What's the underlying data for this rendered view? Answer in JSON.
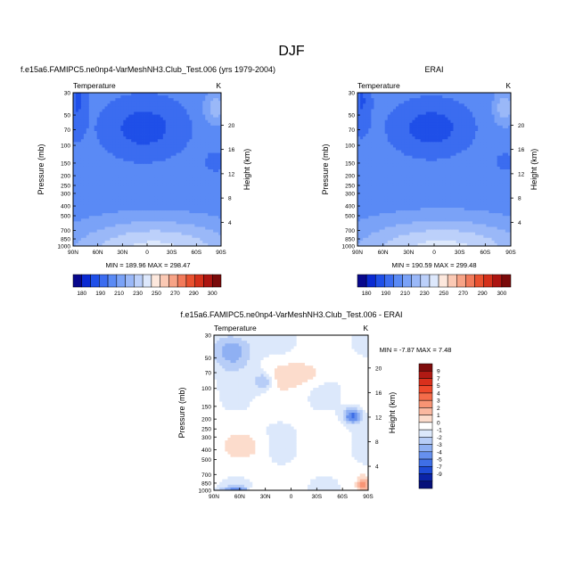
{
  "page_title": "DJF",
  "chart_data": [
    {
      "type": "heatmap",
      "title": "f.e15a6.FAMIPC5.ne0np4-VarMeshNH3.Club_Test.006 (yrs 1979-2004)",
      "left_label": "Temperature",
      "right_label": "K",
      "xlabel": "",
      "ylabel": "Pressure (mb)",
      "ylabel_right": "Height (km)",
      "x_ticks": [
        "90N",
        "60N",
        "30N",
        "0",
        "30S",
        "60S",
        "90S"
      ],
      "y_ticks": [
        "30",
        "50",
        "70",
        "100",
        "150",
        "200",
        "250",
        "300",
        "400",
        "500",
        "700",
        "850",
        "1000"
      ],
      "height_ticks": [
        "4",
        "8",
        "12",
        "16",
        "20"
      ],
      "min_max_text": "MIN = 189.96   MAX = 298.47",
      "min": 189.96,
      "max": 298.47,
      "colorbar_ticks": [
        "180",
        "190",
        "200",
        "210",
        "220",
        "230",
        "240",
        "250",
        "260",
        "270",
        "280",
        "290",
        "300"
      ],
      "colorbar_labels": [
        "180",
        "190",
        "210",
        "230",
        "250",
        "270",
        "290",
        "300"
      ],
      "colors": [
        "#08088c",
        "#0a2ad2",
        "#1f4fe8",
        "#3b6cf0",
        "#5a8af5",
        "#7aa2f7",
        "#9ab8f8",
        "#bcd0fa",
        "#dde8fc",
        "#fde8dd",
        "#fbc9b4",
        "#f7a386",
        "#f27a5a",
        "#e9512f",
        "#d4301a",
        "#ac1410",
        "#7a0a0a"
      ]
    },
    {
      "type": "heatmap",
      "title": "ERAI",
      "left_label": "Temperature",
      "right_label": "K",
      "xlabel": "",
      "ylabel": "Pressure (mb)",
      "ylabel_right": "Height (km)",
      "x_ticks": [
        "90N",
        "60N",
        "30N",
        "0",
        "30S",
        "60S",
        "90S"
      ],
      "y_ticks": [
        "30",
        "50",
        "70",
        "100",
        "150",
        "200",
        "250",
        "300",
        "400",
        "500",
        "700",
        "850",
        "1000"
      ],
      "height_ticks": [
        "4",
        "8",
        "12",
        "16",
        "20"
      ],
      "min_max_text": "MIN = 190.59   MAX = 299.48",
      "min": 190.59,
      "max": 299.48,
      "colorbar_ticks": [
        "180",
        "190",
        "200",
        "210",
        "220",
        "230",
        "240",
        "250",
        "260",
        "270",
        "280",
        "290",
        "300"
      ],
      "colorbar_labels": [
        "180",
        "190",
        "210",
        "230",
        "250",
        "270",
        "290",
        "300"
      ]
    },
    {
      "type": "heatmap",
      "title": "f.e15a6.FAMIPC5.ne0np4-VarMeshNH3.Club_Test.006 - ERAI",
      "left_label": "Temperature",
      "right_label": "K",
      "xlabel": "",
      "ylabel": "Pressure (mb)",
      "ylabel_right": "Height (km)",
      "x_ticks": [
        "90N",
        "60N",
        "30N",
        "0",
        "30S",
        "60S",
        "90S"
      ],
      "y_ticks": [
        "30",
        "50",
        "70",
        "100",
        "150",
        "200",
        "250",
        "300",
        "400",
        "500",
        "700",
        "850",
        "1000"
      ],
      "height_ticks": [
        "4",
        "8",
        "12",
        "16",
        "20"
      ],
      "min_max_text": "MIN = -7.87   MAX =   7.48",
      "min": -7.87,
      "max": 7.48,
      "colorbar_labels": [
        "9",
        "7",
        "5",
        "4",
        "3",
        "2",
        "1",
        "0",
        "-1",
        "-2",
        "-3",
        "-4",
        "-5",
        "-7",
        "-9"
      ],
      "colors": [
        "#7f0c0c",
        "#b11a14",
        "#d9301c",
        "#ef4a2c",
        "#f56c4a",
        "#f89474",
        "#fab8a0",
        "#fcdccc",
        "#ffffff",
        "#dce8fb",
        "#b7cdf7",
        "#8fb0f3",
        "#6690ee",
        "#3f6fe6",
        "#1e4bd6",
        "#0b24a8",
        "#06107a"
      ]
    }
  ]
}
